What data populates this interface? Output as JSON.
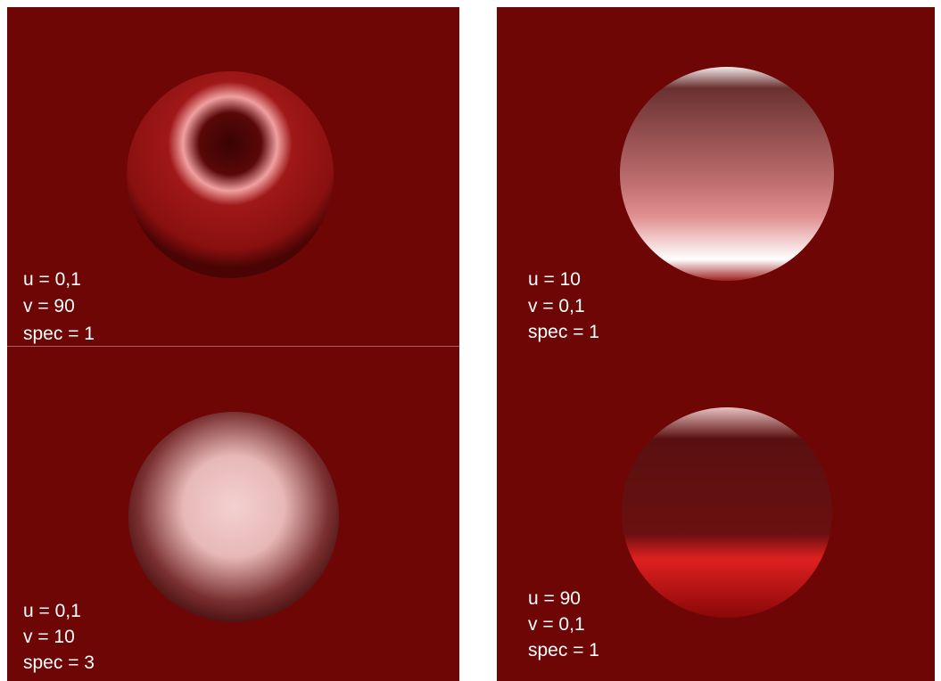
{
  "panels": [
    {
      "lines": [
        "u = 0,1",
        "v = 90",
        "spec = 1"
      ]
    },
    {
      "lines": [
        "u = 10",
        "v = 0,1",
        "spec = 1"
      ]
    },
    {
      "lines": [
        "u = 0,1",
        "v = 10",
        "spec = 3"
      ]
    },
    {
      "lines": [
        "u = 90",
        "v = 0,1",
        "spec = 1"
      ]
    }
  ]
}
